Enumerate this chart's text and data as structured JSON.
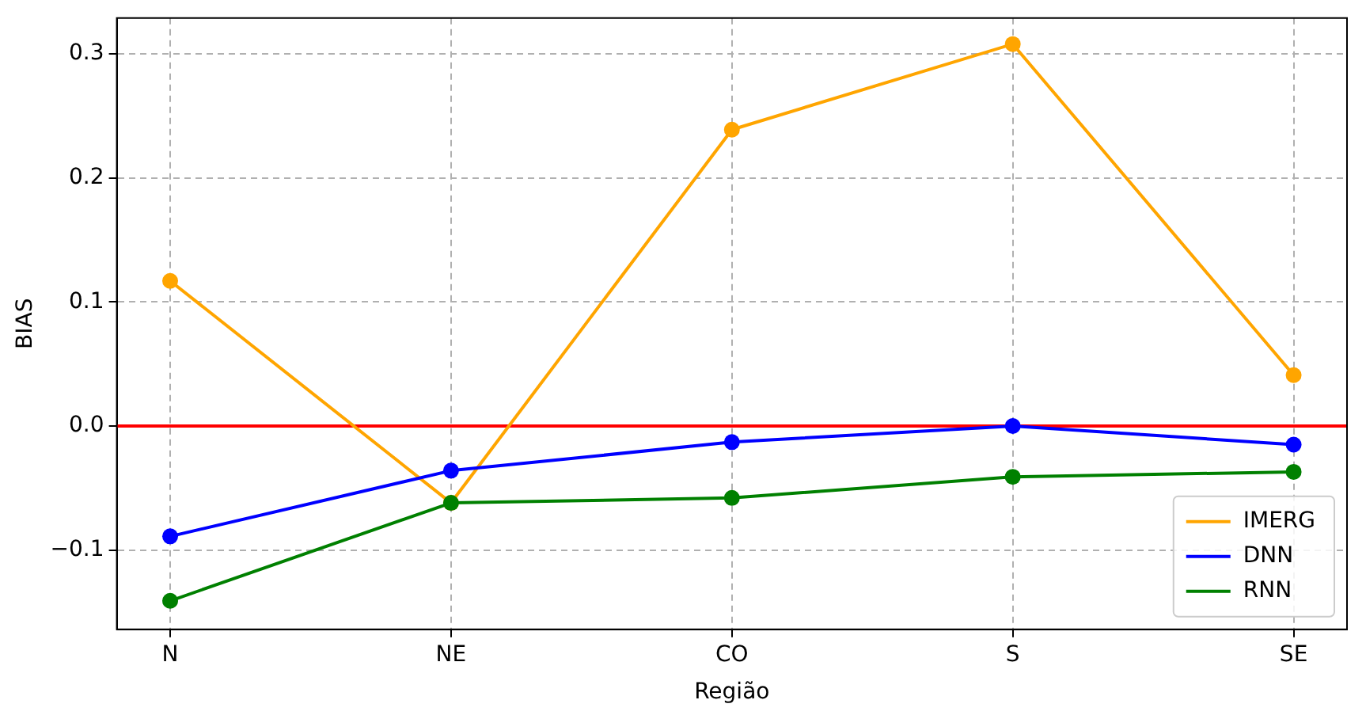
{
  "chart_data": {
    "type": "line",
    "xlabel": "Região",
    "ylabel": "BIAS",
    "categories": [
      "N",
      "NE",
      "CO",
      "S",
      "SE"
    ],
    "series": [
      {
        "name": "IMERG",
        "color": "#ffa500",
        "values": [
          0.117,
          -0.062,
          0.239,
          0.308,
          0.041
        ]
      },
      {
        "name": "DNN",
        "color": "#0000ff",
        "values": [
          -0.089,
          -0.036,
          -0.013,
          0.0,
          -0.015
        ]
      },
      {
        "name": "RNN",
        "color": "#008000",
        "values": [
          -0.141,
          -0.062,
          -0.058,
          -0.041,
          -0.037
        ]
      }
    ],
    "ylim": [
      -0.164,
      0.329
    ],
    "yticks": [
      {
        "value": -0.1,
        "label": "−0.1"
      },
      {
        "value": 0,
        "label": "0.0"
      },
      {
        "value": 0.1,
        "label": "0.1"
      },
      {
        "value": 0.2,
        "label": "0.2"
      },
      {
        "value": 0.3,
        "label": "0.3"
      }
    ],
    "ref_lines": [
      {
        "axis": "y",
        "value": 0,
        "color": "#ff0000"
      }
    ],
    "grid": true,
    "legend": "bottom right",
    "marker": "circle",
    "line_style": "solid"
  }
}
